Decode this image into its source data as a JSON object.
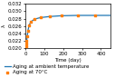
{
  "chart_data": {
    "type": "line",
    "title": "",
    "xlabel": "Time (day)",
    "ylabel": "λ",
    "xlim": [
      0,
      450
    ],
    "ylim": [
      0.02,
      0.032
    ],
    "xticks": [
      0,
      100,
      200,
      300,
      400
    ],
    "yticks": [
      {
        "value": 0.02,
        "label": "0.020"
      },
      {
        "value": 0.022,
        "label": "0.022"
      },
      {
        "value": 0.024,
        "label": "0.024"
      },
      {
        "value": 0.026,
        "label": "0.026"
      },
      {
        "value": 0.028,
        "label": "0.028"
      },
      {
        "value": 0.03,
        "label": "0.030"
      },
      {
        "value": 0.032,
        "label": "0.032"
      }
    ],
    "series": [
      {
        "name": "Aging at ambient temperature",
        "type": "line",
        "x": [
          0,
          3,
          5,
          7,
          10,
          14,
          20,
          30,
          50,
          80,
          130,
          190,
          280,
          370,
          450
        ],
        "values": [
          0.0202,
          0.0205,
          0.0212,
          0.022,
          0.0232,
          0.0248,
          0.0262,
          0.0272,
          0.0279,
          0.0283,
          0.0286,
          0.0288,
          0.0289,
          0.0289,
          0.0289
        ]
      },
      {
        "name": "Aging at 70°C",
        "type": "scatter",
        "marker": "square",
        "x": [
          3,
          5,
          7,
          10,
          14,
          20,
          30,
          50,
          80,
          130,
          190,
          280,
          370
        ],
        "values": [
          0.0205,
          0.0212,
          0.022,
          0.0232,
          0.0248,
          0.0262,
          0.0272,
          0.0279,
          0.0283,
          0.0286,
          0.0288,
          0.0289,
          0.0289
        ]
      }
    ]
  }
}
